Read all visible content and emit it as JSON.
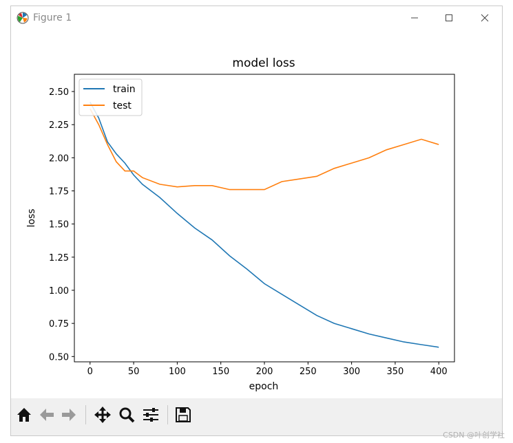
{
  "window": {
    "title": "Figure 1",
    "minimize_icon": "minimize-icon",
    "maximize_icon": "maximize-icon",
    "close_icon": "close-icon"
  },
  "toolbar": {
    "buttons": [
      {
        "name": "home-button",
        "icon": "home-icon"
      },
      {
        "name": "back-button",
        "icon": "arrow-left-icon"
      },
      {
        "name": "forward-button",
        "icon": "arrow-right-icon"
      },
      {
        "name": "pan-button",
        "icon": "move-icon"
      },
      {
        "name": "zoom-button",
        "icon": "magnifier-icon"
      },
      {
        "name": "configure-subplots-button",
        "icon": "sliders-icon"
      },
      {
        "name": "save-button",
        "icon": "floppy-disk-icon"
      }
    ]
  },
  "watermark": "CSDN @叶创学社",
  "chart_data": {
    "type": "line",
    "title": "model loss",
    "xlabel": "epoch",
    "ylabel": "loss",
    "xlim": [
      -18,
      418
    ],
    "ylim": [
      0.46,
      2.63
    ],
    "xticks": [
      0,
      50,
      100,
      150,
      200,
      250,
      300,
      350,
      400
    ],
    "yticks": [
      0.5,
      0.75,
      1.0,
      1.25,
      1.5,
      1.75,
      2.0,
      2.25,
      2.5
    ],
    "ytick_labels": [
      "0.50",
      "0.75",
      "1.00",
      "1.25",
      "1.50",
      "1.75",
      "2.00",
      "2.25",
      "2.50"
    ],
    "legend_position": "top-left",
    "grid": false,
    "x": [
      0,
      10,
      20,
      30,
      40,
      50,
      60,
      80,
      100,
      120,
      140,
      160,
      180,
      200,
      220,
      240,
      260,
      280,
      300,
      320,
      340,
      360,
      380,
      400
    ],
    "series": [
      {
        "name": "train",
        "color": "#1f77b4",
        "values": [
          2.42,
          2.3,
          2.12,
          2.03,
          1.96,
          1.87,
          1.8,
          1.7,
          1.58,
          1.47,
          1.38,
          1.26,
          1.16,
          1.05,
          0.97,
          0.89,
          0.81,
          0.75,
          0.71,
          0.67,
          0.64,
          0.61,
          0.59,
          0.57
        ]
      },
      {
        "name": "test",
        "color": "#ff7f0e",
        "values": [
          2.37,
          2.25,
          2.1,
          1.97,
          1.9,
          1.9,
          1.85,
          1.8,
          1.78,
          1.79,
          1.79,
          1.76,
          1.76,
          1.76,
          1.82,
          1.84,
          1.86,
          1.92,
          1.96,
          2.0,
          2.06,
          2.1,
          2.14,
          2.1
        ]
      }
    ]
  }
}
